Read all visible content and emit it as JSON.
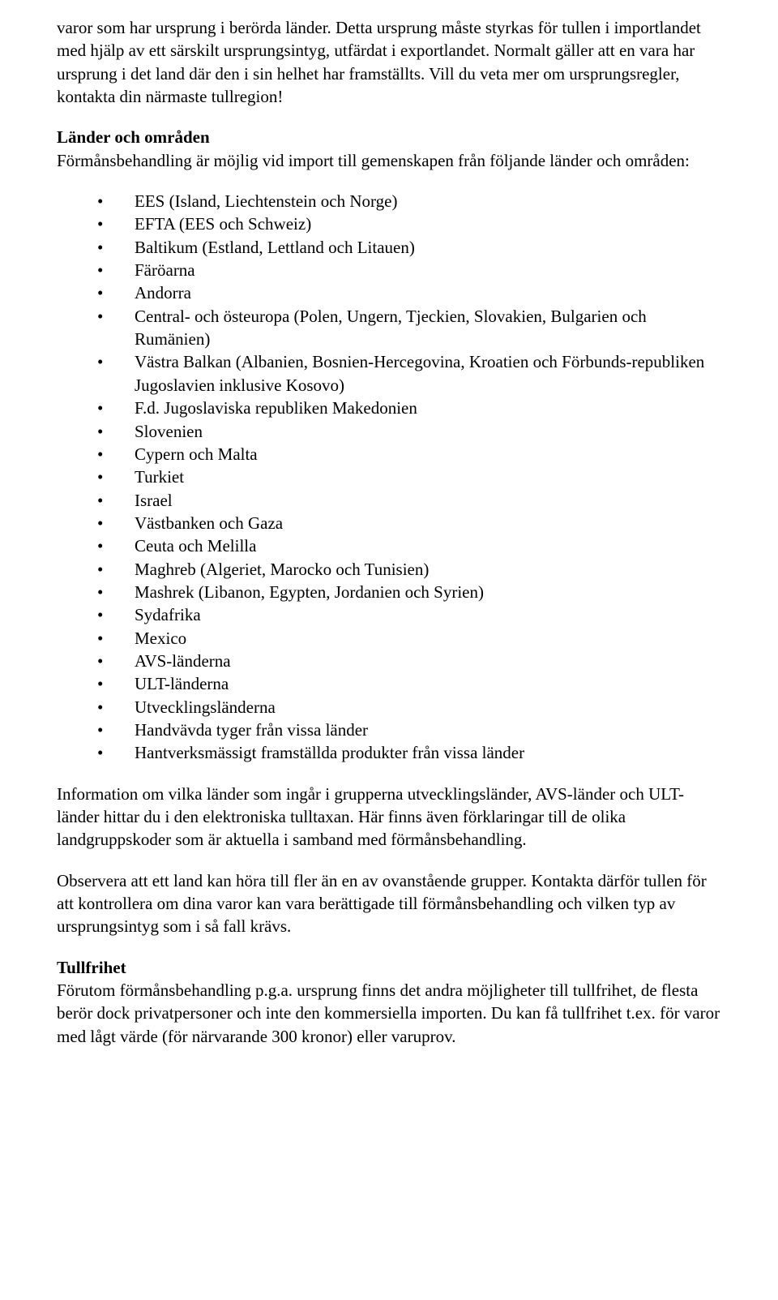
{
  "paragraphs": {
    "p1": "varor som har ursprung i berörda länder. Detta ursprung måste styrkas för tullen i importlandet med hjälp av ett särskilt ursprungsintyg, utfärdat i exportlandet. Normalt gäller att en vara har ursprung i det land där den i sin helhet har framställts. Vill du veta mer om ursprungsregler, kontakta din närmaste tullregion!",
    "p3": "Information om vilka länder som ingår i grupperna utvecklingsländer, AVS-länder och ULT-länder hittar du i den elektroniska tulltaxan. Här finns även förklaringar till de olika landgruppskoder som är aktuella i samband med förmånsbehandling.",
    "p4": "Observera att ett land kan höra till fler än en av ovanstående grupper. Kontakta därför tullen för att kontrollera om dina varor kan vara berättigade till förmånsbehandling och vilken typ av ursprungsintyg som i så fall krävs."
  },
  "section1": {
    "heading": "Länder och områden",
    "intro": "Förmånsbehandling är möjlig vid import till gemenskapen från följande länder och områden:"
  },
  "list": {
    "items": [
      "EES (Island, Liechtenstein och Norge)",
      "EFTA (EES och Schweiz)",
      "Baltikum (Estland, Lettland och Litauen)",
      "Färöarna",
      "Andorra",
      "Central- och östeuropa (Polen, Ungern, Tjeckien, Slovakien, Bulgarien och Rumänien)",
      "Västra Balkan (Albanien, Bosnien-Hercegovina, Kroatien och Förbunds-republiken Jugoslavien inklusive Kosovo)",
      "F.d. Jugoslaviska republiken Makedonien",
      "Slovenien",
      "Cypern och Malta",
      "Turkiet",
      "Israel",
      "Västbanken och Gaza",
      "Ceuta och Melilla",
      "Maghreb (Algeriet, Marocko och Tunisien)",
      "Mashrek (Libanon, Egypten, Jordanien och Syrien)",
      "Sydafrika",
      "Mexico",
      "AVS-länderna",
      "ULT-länderna",
      "Utvecklingsländerna",
      "Handvävda tyger från vissa länder",
      "Hantverksmässigt framställda produkter från vissa länder"
    ]
  },
  "section2": {
    "heading": "Tullfrihet",
    "body": "Förutom förmånsbehandling p.g.a. ursprung finns det andra möjligheter till tullfrihet, de flesta berör dock privatpersoner och inte den kommersiella importen. Du kan få tullfrihet t.ex. för varor med lågt värde (för närvarande 300 kronor) eller varuprov."
  }
}
